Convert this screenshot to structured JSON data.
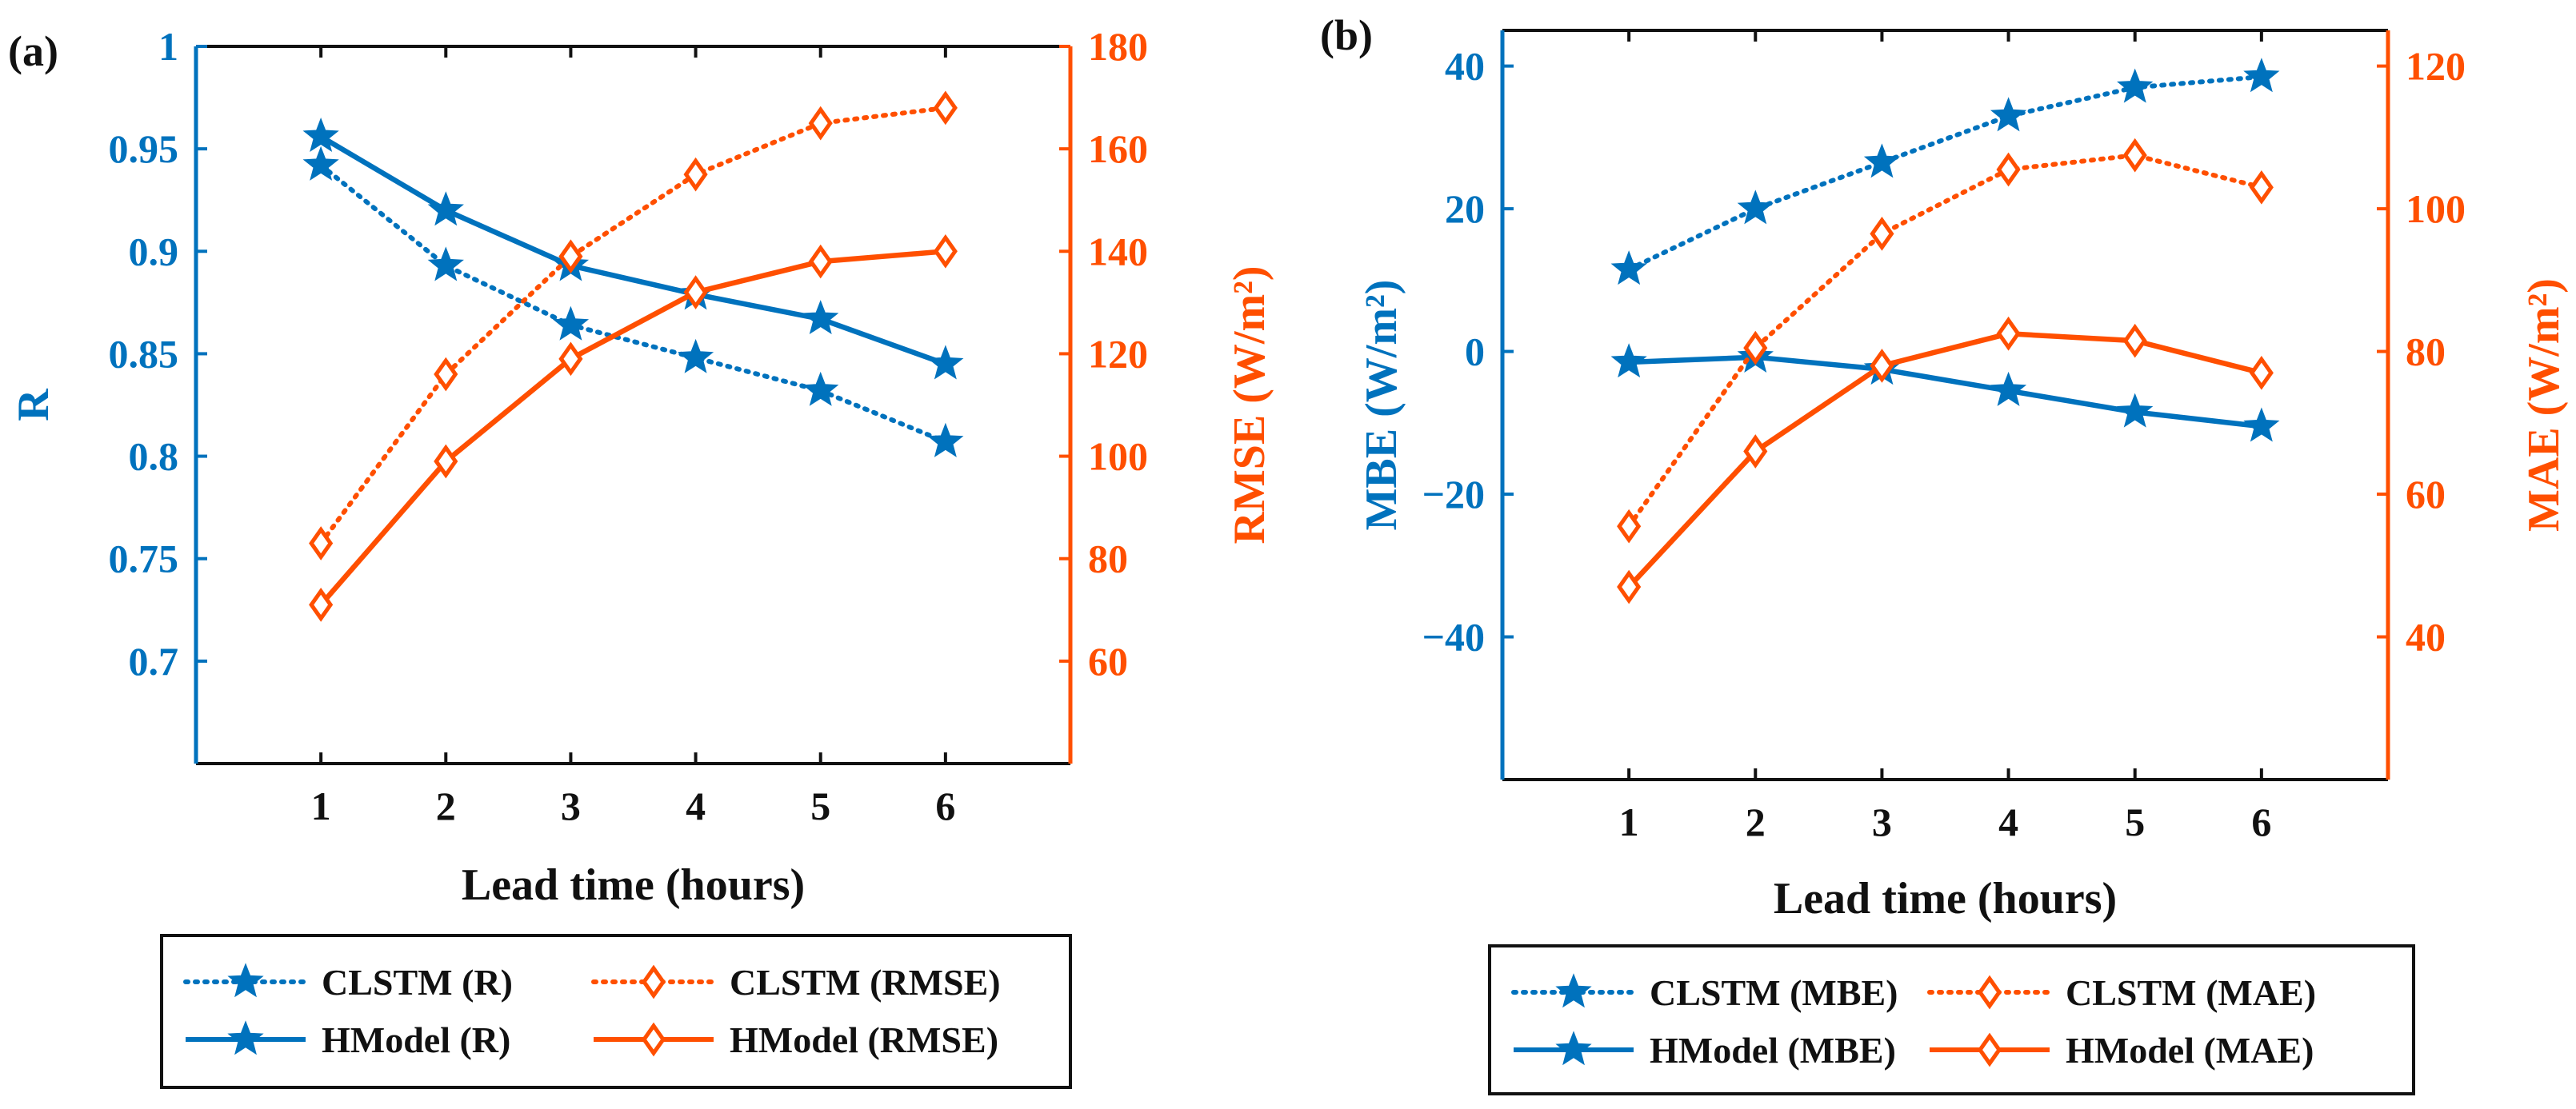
{
  "colors": {
    "blue": "#0072BD",
    "orange": "#FF4F00",
    "black": "#111111"
  },
  "chart_data": [
    {
      "type": "line",
      "panel_label": "(a)",
      "xlabel": "Lead time (hours)",
      "ylabel_left": "R",
      "ylabel_right": "RMSE (W/m²)",
      "x": [
        1,
        2,
        3,
        4,
        5,
        6
      ],
      "xlim": [
        0,
        7
      ],
      "ylim_left": [
        0.65,
        1
      ],
      "ylim_right": [
        40,
        180
      ],
      "ticks_left": [
        "0.7",
        "0.75",
        "0.8",
        "0.85",
        "0.9",
        "0.95",
        "1"
      ],
      "ticks_right": [
        "60",
        "80",
        "100",
        "120",
        "140",
        "160",
        "180"
      ],
      "ticks_x": [
        "1",
        "2",
        "3",
        "4",
        "5",
        "6"
      ],
      "series": [
        {
          "name": "CLSTM (R)",
          "axis": "left",
          "color": "blue",
          "line": "dotted",
          "marker": "star",
          "values": [
            0.942,
            0.893,
            0.864,
            0.848,
            0.832,
            0.807
          ]
        },
        {
          "name": "HModel (R)",
          "axis": "left",
          "color": "blue",
          "line": "solid",
          "marker": "star",
          "values": [
            0.956,
            0.92,
            0.893,
            0.879,
            0.867,
            0.845
          ]
        },
        {
          "name": "CLSTM (RMSE)",
          "axis": "right",
          "color": "orange",
          "line": "dotted",
          "marker": "diamond",
          "values": [
            83,
            116,
            139,
            155,
            165,
            168
          ]
        },
        {
          "name": "HModel (RMSE)",
          "axis": "right",
          "color": "orange",
          "line": "solid",
          "marker": "diamond",
          "values": [
            71,
            99,
            119,
            132,
            138,
            140
          ]
        }
      ],
      "legend": [
        "CLSTM (R)",
        "CLSTM (RMSE)",
        "HModel (R)",
        "HModel (RMSE)"
      ]
    },
    {
      "type": "line",
      "panel_label": "(b)",
      "xlabel": "Lead time (hours)",
      "ylabel_left": "MBE (W/m²)",
      "ylabel_right": "MAE (W/m²)",
      "x": [
        1,
        2,
        3,
        4,
        5,
        6
      ],
      "xlim": [
        0,
        7
      ],
      "ylim_left": [
        -60,
        45
      ],
      "ylim_right": [
        20,
        125
      ],
      "ticks_left": [
        "−40",
        "−20",
        "0",
        "20",
        "40"
      ],
      "ticks_right": [
        "40",
        "60",
        "80",
        "100",
        "120"
      ],
      "ticks_x": [
        "1",
        "2",
        "3",
        "4",
        "5",
        "6"
      ],
      "series": [
        {
          "name": "CLSTM (MBE)",
          "axis": "left",
          "color": "blue",
          "line": "dotted",
          "marker": "star",
          "values": [
            11.5,
            20,
            26.5,
            33,
            37,
            38.5
          ]
        },
        {
          "name": "HModel (MBE)",
          "axis": "left",
          "color": "blue",
          "line": "solid",
          "marker": "star",
          "values": [
            -1.5,
            -0.8,
            -2.5,
            -5.5,
            -8.5,
            -10.5
          ]
        },
        {
          "name": "CLSTM (MAE)",
          "axis": "right",
          "color": "orange",
          "line": "dotted",
          "marker": "diamond",
          "values": [
            55.5,
            80.5,
            96.5,
            105.5,
            107.5,
            103
          ]
        },
        {
          "name": "HModel (MAE)",
          "axis": "right",
          "color": "orange",
          "line": "solid",
          "marker": "diamond",
          "values": [
            47,
            66,
            78,
            82.5,
            81.5,
            77
          ]
        }
      ],
      "legend": [
        "CLSTM (MBE)",
        "CLSTM (MAE)",
        "HModel (MBE)",
        "HModel (MAE)"
      ]
    }
  ]
}
